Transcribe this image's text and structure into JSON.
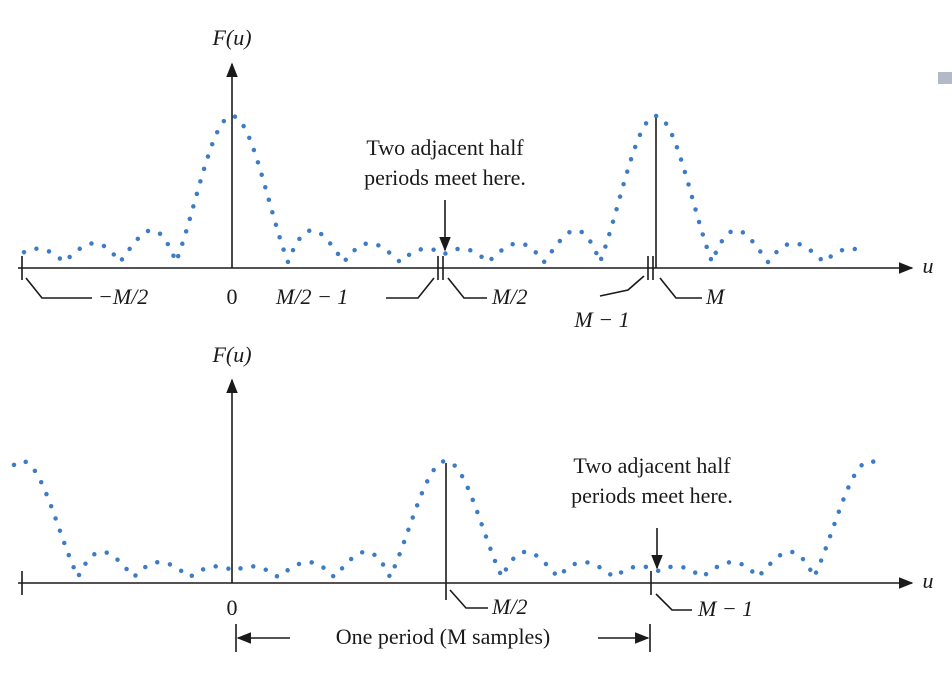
{
  "top": {
    "axis_label": "F(u)",
    "h_label": "u",
    "annotation": [
      "Two adjacent half",
      "periods meet here."
    ],
    "ticks": [
      "−M/2",
      "0",
      "M/2 − 1",
      "M/2",
      "M − 1",
      "M"
    ]
  },
  "bottom": {
    "axis_label": "F(u)",
    "h_label": "u",
    "annotation": [
      "Two adjacent half",
      "periods meet here."
    ],
    "ticks": [
      "0",
      "M/2",
      "M − 1"
    ],
    "period": "One period (M samples)"
  }
}
